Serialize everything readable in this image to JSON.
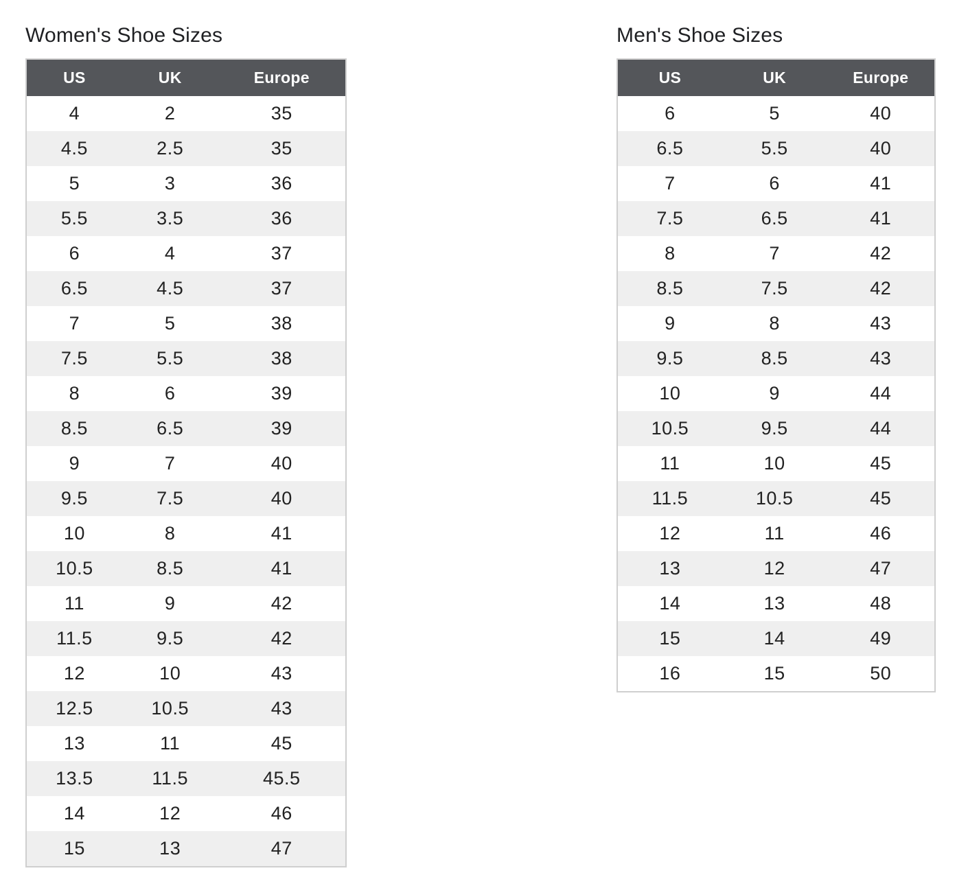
{
  "tables": [
    {
      "id": "womens",
      "title": "Women's Shoe Sizes",
      "columns": [
        "US",
        "UK",
        "Europe"
      ],
      "rows": [
        [
          "4",
          "2",
          "35"
        ],
        [
          "4.5",
          "2.5",
          "35"
        ],
        [
          "5",
          "3",
          "36"
        ],
        [
          "5.5",
          "3.5",
          "36"
        ],
        [
          "6",
          "4",
          "37"
        ],
        [
          "6.5",
          "4.5",
          "37"
        ],
        [
          "7",
          "5",
          "38"
        ],
        [
          "7.5",
          "5.5",
          "38"
        ],
        [
          "8",
          "6",
          "39"
        ],
        [
          "8.5",
          "6.5",
          "39"
        ],
        [
          "9",
          "7",
          "40"
        ],
        [
          "9.5",
          "7.5",
          "40"
        ],
        [
          "10",
          "8",
          "41"
        ],
        [
          "10.5",
          "8.5",
          "41"
        ],
        [
          "11",
          "9",
          "42"
        ],
        [
          "11.5",
          "9.5",
          "42"
        ],
        [
          "12",
          "10",
          "43"
        ],
        [
          "12.5",
          "10.5",
          "43"
        ],
        [
          "13",
          "11",
          "45"
        ],
        [
          "13.5",
          "11.5",
          "45.5"
        ],
        [
          "14",
          "12",
          "46"
        ],
        [
          "15",
          "13",
          "47"
        ]
      ]
    },
    {
      "id": "mens",
      "title": "Men's Shoe Sizes",
      "columns": [
        "US",
        "UK",
        "Europe"
      ],
      "rows": [
        [
          "6",
          "5",
          "40"
        ],
        [
          "6.5",
          "5.5",
          "40"
        ],
        [
          "7",
          "6",
          "41"
        ],
        [
          "7.5",
          "6.5",
          "41"
        ],
        [
          "8",
          "7",
          "42"
        ],
        [
          "8.5",
          "7.5",
          "42"
        ],
        [
          "9",
          "8",
          "43"
        ],
        [
          "9.5",
          "8.5",
          "43"
        ],
        [
          "10",
          "9",
          "44"
        ],
        [
          "10.5",
          "9.5",
          "44"
        ],
        [
          "11",
          "10",
          "45"
        ],
        [
          "11.5",
          "10.5",
          "45"
        ],
        [
          "12",
          "11",
          "46"
        ],
        [
          "13",
          "12",
          "47"
        ],
        [
          "14",
          "13",
          "48"
        ],
        [
          "15",
          "14",
          "49"
        ],
        [
          "16",
          "15",
          "50"
        ]
      ]
    }
  ],
  "colors": {
    "header_bg": "#54565a",
    "header_text": "#ffffff",
    "stripe_bg": "#efefef",
    "row_bg": "#ffffff",
    "border": "#cfcfcf",
    "body_text": "#222222",
    "title_text": "#1f2023"
  }
}
